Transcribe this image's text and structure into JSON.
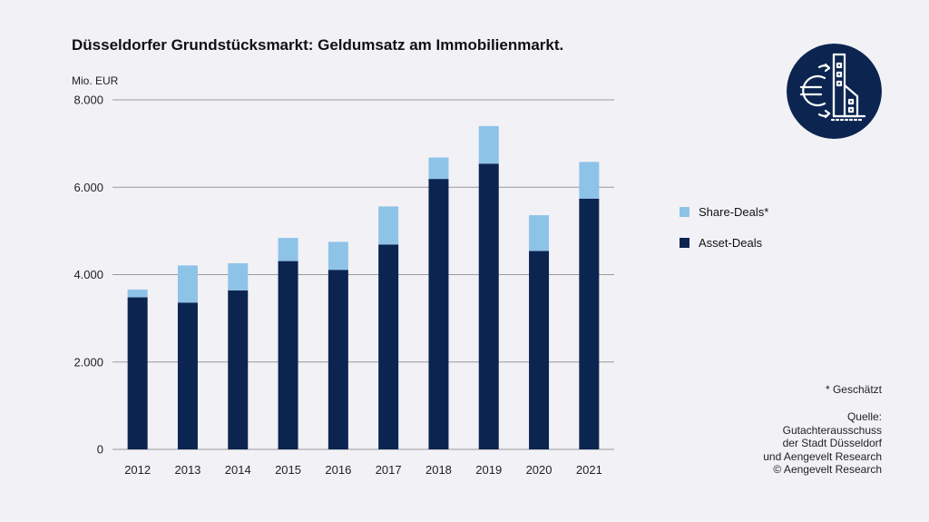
{
  "title": "Düsseldorfer Grundstücksmarkt: Geldumsatz am Immobilienmarkt.",
  "unit_label": "Mio. EUR",
  "colors": {
    "asset": "#0c2550",
    "share": "#8ec3e8",
    "grid": "#9a9a9a",
    "logo_bg": "#0c2550"
  },
  "legend": [
    {
      "label": "Share-Deals*",
      "color": "#8ec3e8"
    },
    {
      "label": "Asset-Deals",
      "color": "#0c2550"
    }
  ],
  "note": "* Geschätzt",
  "source_lines": [
    "Quelle:",
    "Gutachterausschuss",
    "der Stadt Düsseldorf",
    "und Aengevelt Research",
    "© Aengevelt Research"
  ],
  "logo_icon": "euro-building-icon",
  "chart_data": {
    "type": "bar",
    "stacked": true,
    "title": "Düsseldorfer Grundstücksmarkt: Geldumsatz am Immobilienmarkt.",
    "ylabel": "Mio. EUR",
    "ylim": [
      0,
      8000
    ],
    "yticks": [
      0,
      2000,
      4000,
      6000,
      8000
    ],
    "ytick_labels": [
      "0",
      "2.000",
      "4.000",
      "6.000",
      "8.000"
    ],
    "grid": true,
    "legend_position": "right",
    "categories": [
      "2012",
      "2013",
      "2014",
      "2015",
      "2016",
      "2017",
      "2018",
      "2019",
      "2020",
      "2021"
    ],
    "series": [
      {
        "name": "Asset-Deals",
        "values": [
          3480,
          3360,
          3640,
          4310,
          4110,
          4690,
          6190,
          6540,
          4540,
          5740
        ]
      },
      {
        "name": "Share-Deals*",
        "values": [
          180,
          850,
          620,
          530,
          640,
          870,
          490,
          860,
          820,
          840
        ]
      }
    ]
  }
}
